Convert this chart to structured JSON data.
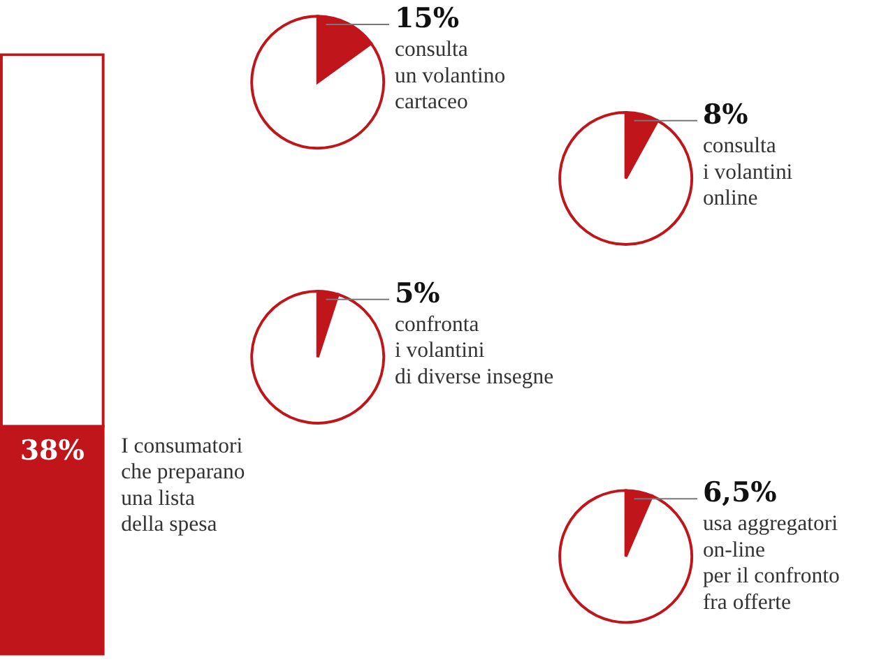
{
  "chart_data": [
    {
      "type": "bar",
      "stacked": true,
      "categories": [
        null
      ],
      "ylim": [
        0,
        100
      ],
      "tick_labels": false,
      "series": [
        {
          "color": "#c0151b",
          "values": [
            38
          ],
          "value_labels": [
            "38%"
          ]
        },
        {
          "color": "#ffffff",
          "values": [
            62
          ]
        }
      ],
      "annotations": [
        "I consumatori\nche preparano\nuna lista\ndella spesa"
      ]
    },
    {
      "type": "pie",
      "categories": [
        "consulta\nun volantino\ncartaceo",
        null
      ],
      "values": [
        15,
        85
      ],
      "colors": [
        "#c0151b",
        "#ffffff"
      ],
      "value_labels": [
        "15%",
        null
      ]
    },
    {
      "type": "pie",
      "categories": [
        "consulta\ni volantini\nonline",
        null
      ],
      "values": [
        8,
        92
      ],
      "colors": [
        "#c0151b",
        "#ffffff"
      ],
      "value_labels": [
        "8%",
        null
      ]
    },
    {
      "type": "pie",
      "categories": [
        "confronta\ni volantini\ndi diverse insegne",
        null
      ],
      "values": [
        5,
        95
      ],
      "colors": [
        "#c0151b",
        "#ffffff"
      ],
      "value_labels": [
        "5%",
        null
      ]
    },
    {
      "type": "pie",
      "categories": [
        "usa aggregatori\non-line\nper il confronto\nfra offerte",
        null
      ],
      "values": [
        6.5,
        93.5
      ],
      "colors": [
        "#c0151b",
        "#ffffff"
      ],
      "value_labels": [
        "6,5%",
        null
      ]
    }
  ]
}
